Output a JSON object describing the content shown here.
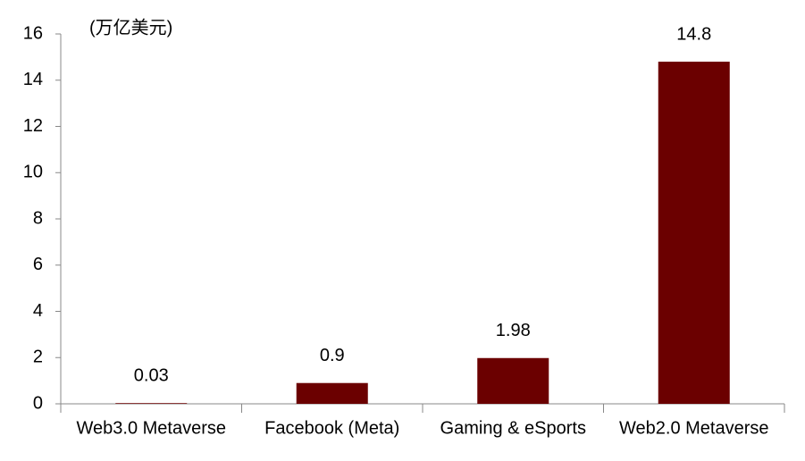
{
  "chart_data": {
    "type": "bar",
    "ylabel": "(万亿美元)",
    "categories": [
      "Web3.0 Metaverse",
      "Facebook (Meta)",
      "Gaming & eSports",
      "Web2.0 Metaverse"
    ],
    "values": [
      0.03,
      0.9,
      1.98,
      14.8
    ],
    "color": "#6b0000",
    "ylim": [
      0,
      16
    ],
    "yticks": [
      0,
      2,
      4,
      6,
      8,
      10,
      12,
      14,
      16
    ],
    "grid": false
  }
}
